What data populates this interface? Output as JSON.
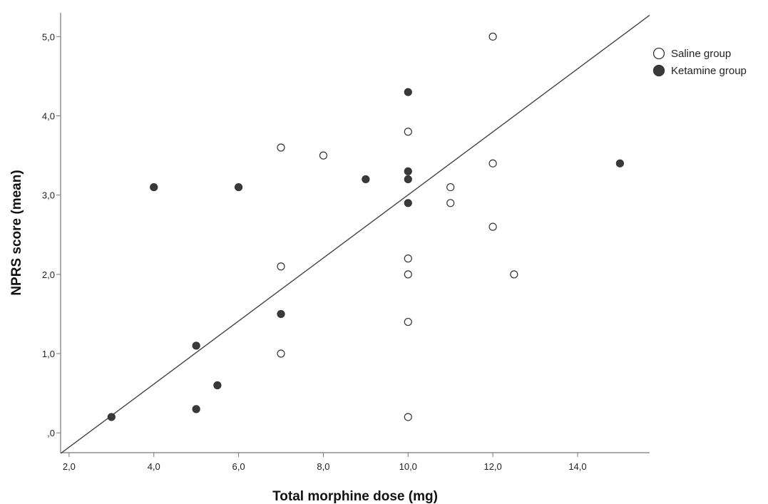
{
  "chart_data": {
    "type": "scatter",
    "title": "",
    "xlabel": "Total morphine dose (mg)",
    "ylabel": "NPRS score (mean)",
    "xlim": [
      1.8,
      15.7
    ],
    "ylim": [
      -0.25,
      5.3
    ],
    "x_ticks": [
      2,
      4,
      6,
      8,
      10,
      12,
      14
    ],
    "x_tick_labels": [
      "2,0",
      "4,0",
      "6,0",
      "8,0",
      "10,0",
      "12,0",
      "14,0"
    ],
    "y_ticks": [
      0,
      1,
      2,
      3,
      4,
      5
    ],
    "y_tick_labels": [
      ",0",
      "1,0",
      "2,0",
      "3,0",
      "4,0",
      "5,0"
    ],
    "grid": false,
    "legend_position": "top-right",
    "fit_line": {
      "x": [
        1.8,
        15.7
      ],
      "y": [
        -0.26,
        5.27
      ],
      "color": "#444444"
    },
    "series": [
      {
        "name": "Saline group",
        "marker": "open-circle",
        "color": "#333333",
        "fill": "#ffffff",
        "points": [
          {
            "x": 7,
            "y": 3.6
          },
          {
            "x": 8,
            "y": 3.5
          },
          {
            "x": 7,
            "y": 2.1
          },
          {
            "x": 7,
            "y": 1.0
          },
          {
            "x": 10,
            "y": 3.8
          },
          {
            "x": 10,
            "y": 2.2
          },
          {
            "x": 10,
            "y": 2.0
          },
          {
            "x": 10,
            "y": 1.4
          },
          {
            "x": 10,
            "y": 0.2
          },
          {
            "x": 11,
            "y": 3.1
          },
          {
            "x": 11,
            "y": 2.9
          },
          {
            "x": 12,
            "y": 5.0
          },
          {
            "x": 12,
            "y": 3.4
          },
          {
            "x": 12,
            "y": 2.6
          },
          {
            "x": 12.5,
            "y": 2.0
          }
        ]
      },
      {
        "name": "Ketamine group",
        "marker": "filled-circle",
        "color": "#333333",
        "fill": "#3a3a3a",
        "points": [
          {
            "x": 3,
            "y": 0.2
          },
          {
            "x": 4,
            "y": 3.1
          },
          {
            "x": 5,
            "y": 1.1
          },
          {
            "x": 5,
            "y": 0.3
          },
          {
            "x": 5.5,
            "y": 0.6
          },
          {
            "x": 6,
            "y": 3.1
          },
          {
            "x": 7,
            "y": 1.5
          },
          {
            "x": 9,
            "y": 3.2
          },
          {
            "x": 10,
            "y": 4.3
          },
          {
            "x": 10,
            "y": 3.3
          },
          {
            "x": 10,
            "y": 3.2
          },
          {
            "x": 10,
            "y": 2.9
          },
          {
            "x": 15,
            "y": 3.4
          }
        ]
      }
    ]
  }
}
